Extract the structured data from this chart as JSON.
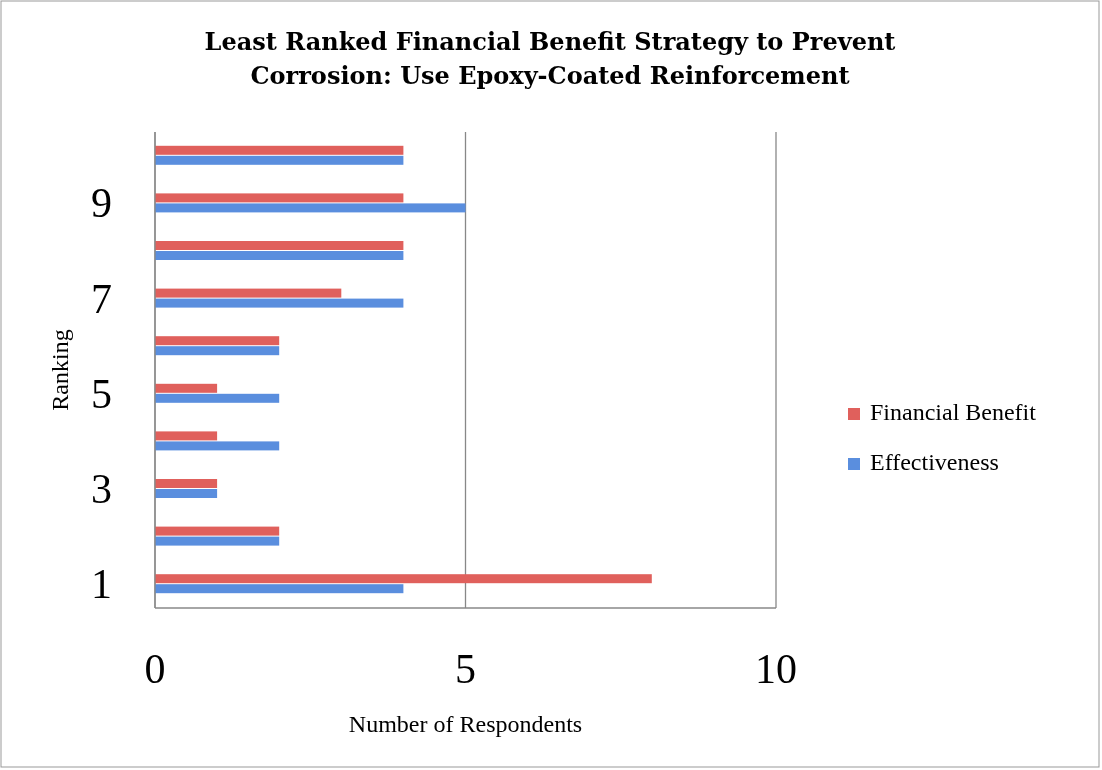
{
  "chart_data": {
    "type": "bar",
    "orientation": "horizontal",
    "title": "Least Ranked Financial Benefit Strategy to Prevent Corrosion: Use Epoxy-Coated Reinforcement",
    "xlabel": "Number of Respondents",
    "ylabel": "Ranking",
    "categories": [
      null,
      "9",
      null,
      "7",
      null,
      "5",
      null,
      "3",
      null,
      "1"
    ],
    "series": [
      {
        "name": "Financial Benefit",
        "color": "#e0605c",
        "values": [
          4,
          4,
          4,
          3,
          2,
          1,
          1,
          1,
          2,
          8
        ]
      },
      {
        "name": "Effectiveness",
        "color": "#5a8ede",
        "values": [
          4,
          5,
          4,
          4,
          2,
          2,
          2,
          1,
          2,
          4
        ]
      }
    ],
    "xlim": [
      0,
      10
    ],
    "xticks": [
      0,
      5,
      10
    ],
    "grid": "x",
    "legend": "right"
  }
}
